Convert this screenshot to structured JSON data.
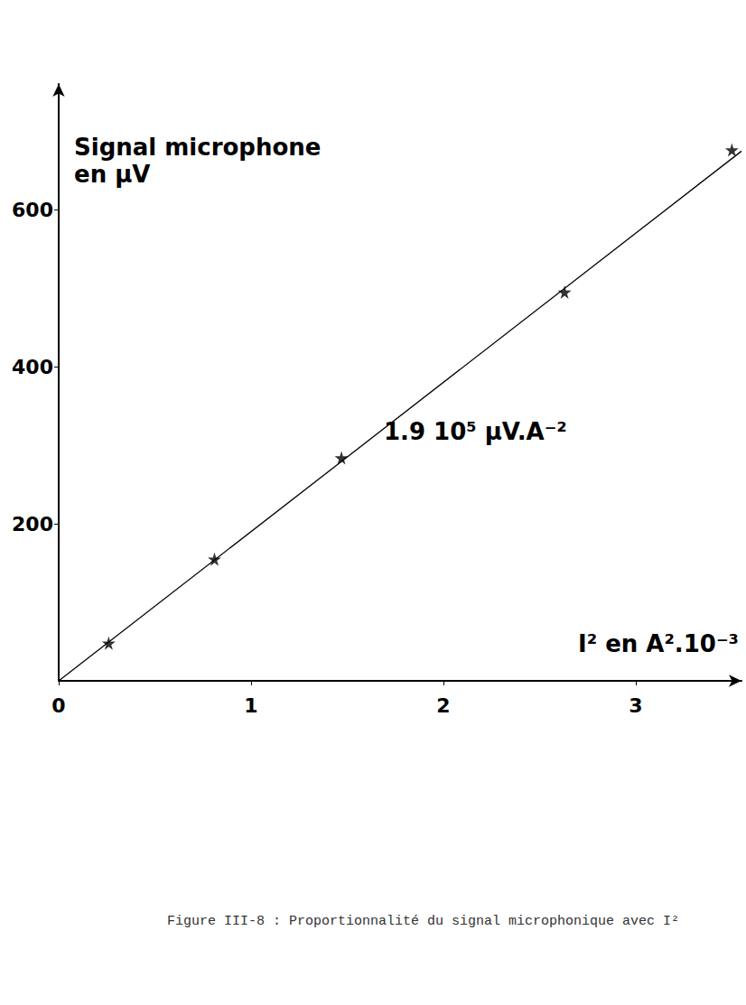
{
  "chart_data": {
    "type": "scatter",
    "caption": "Figure III-8 : Proportionnalité du signal microphonique avec I²",
    "x_label": "I² en A².10⁻³",
    "y_label": "Signal microphone\nen µV",
    "annotation": "1.9 10⁵ µV.A⁻²",
    "x": [
      0.26,
      0.81,
      1.47,
      2.63,
      3.5
    ],
    "values": [
      48,
      155,
      284,
      495,
      676
    ],
    "color": "#000000",
    "marker": "star",
    "fit": {
      "x": [
        0,
        3.55
      ],
      "values": [
        0,
        674.5
      ],
      "color": "#000000",
      "line_style": "solid"
    },
    "xlim": [
      0,
      3.55
    ],
    "ylim": [
      0,
      760
    ],
    "xticks": [
      0,
      1,
      2,
      3
    ],
    "yticks": [
      200,
      400,
      600
    ],
    "grid": false
  }
}
